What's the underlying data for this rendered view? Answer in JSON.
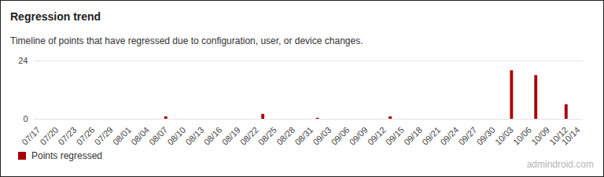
{
  "chart_data": {
    "type": "bar",
    "title": "Regression trend",
    "subtitle": "Timeline of points that have regressed due to configuration, user, or device changes.",
    "categories": [
      "07/17",
      null,
      null,
      "07/20",
      null,
      null,
      "07/23",
      null,
      null,
      "07/26",
      null,
      null,
      "07/29",
      null,
      null,
      "08/01",
      null,
      null,
      "08/04",
      null,
      null,
      "08/07",
      null,
      null,
      "08/10",
      null,
      null,
      "08/13",
      null,
      null,
      "08/16",
      null,
      null,
      "08/19",
      null,
      null,
      "08/22",
      null,
      null,
      "08/25",
      null,
      null,
      "08/28",
      null,
      null,
      "08/31",
      null,
      null,
      "09/03",
      null,
      null,
      "09/06",
      null,
      null,
      "09/09",
      null,
      null,
      "09/12",
      null,
      null,
      "09/15",
      null,
      null,
      "09/18",
      null,
      null,
      "09/21",
      null,
      null,
      "09/24",
      null,
      null,
      "09/27",
      null,
      null,
      "09/30",
      null,
      null,
      "10/03",
      null,
      null,
      "10/06",
      null,
      null,
      "10/09",
      null,
      null,
      "10/12",
      null,
      "10/14"
    ],
    "series": [
      {
        "name": "Points regressed",
        "color": "#a80000",
        "values": [
          0,
          0,
          0,
          0,
          0,
          0,
          0,
          0,
          0,
          0,
          0,
          0,
          0,
          0,
          0,
          0,
          0,
          0,
          0,
          0,
          0,
          1,
          0,
          0,
          0,
          0,
          0,
          0,
          0,
          0,
          0,
          0,
          0,
          0,
          0,
          0,
          0,
          2,
          0,
          0,
          0,
          0,
          0,
          0,
          0,
          0,
          0.4,
          0,
          0,
          0,
          0,
          0,
          0,
          0,
          0,
          0,
          0,
          0,
          1,
          0,
          0,
          0,
          0,
          0,
          0,
          0,
          0,
          0,
          0,
          0,
          0,
          0,
          0,
          0,
          0,
          0,
          0,
          0,
          20,
          0,
          0,
          0,
          18,
          0,
          0,
          0,
          0,
          6,
          0,
          0
        ]
      }
    ],
    "ylim": [
      0,
      24
    ],
    "yticks": [
      0,
      24
    ],
    "grid": true,
    "legend": "bottom-left",
    "watermark": "admindroid.com"
  }
}
